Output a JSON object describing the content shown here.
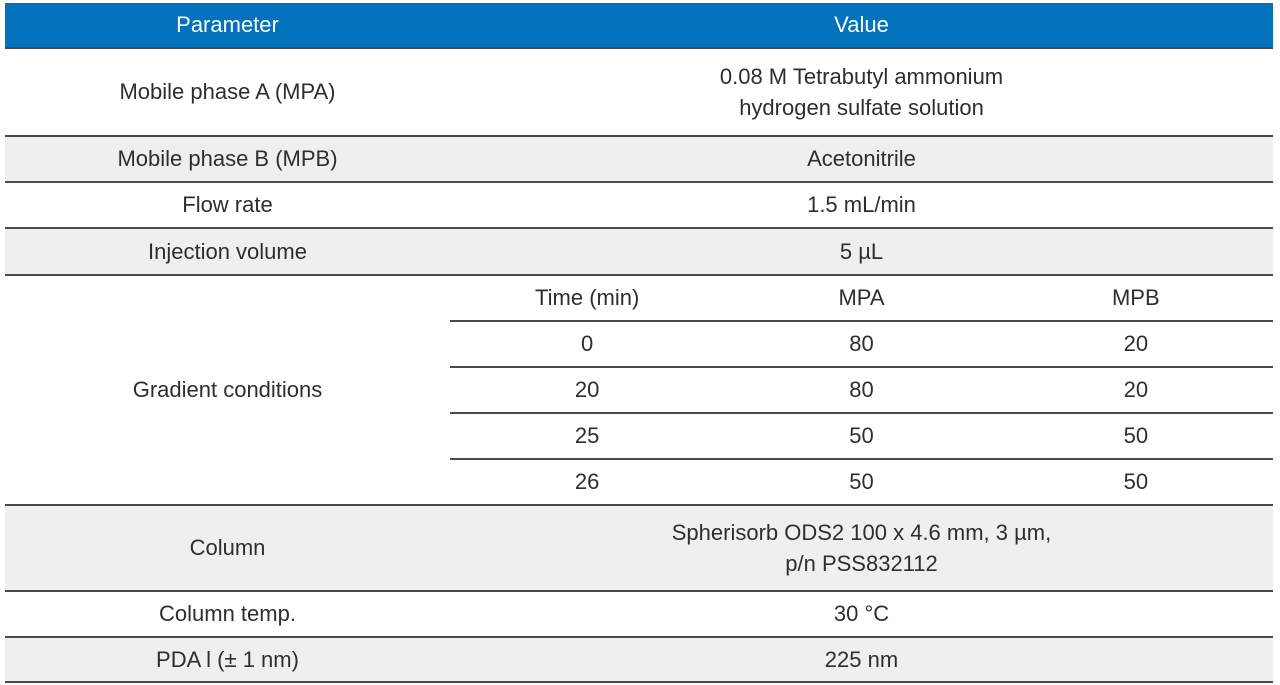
{
  "colors": {
    "header_bg": "#0272BC",
    "header_text": "#FFFFFF",
    "alt_row_bg": "#EFEFEF",
    "border": "#4A4A4A",
    "text": "#2E2E2E"
  },
  "table": {
    "headers": {
      "parameter": "Parameter",
      "value": "Value"
    },
    "rows": {
      "mpa": {
        "label": "Mobile phase A (MPA)",
        "value_line1": "0.08 M Tetrabutyl ammonium",
        "value_line2": "hydrogen sulfate solution"
      },
      "mpb": {
        "label": "Mobile phase B (MPB)",
        "value": "Acetonitrile"
      },
      "flow_rate": {
        "label": "Flow rate",
        "value": "1.5 mL/min"
      },
      "injection_volume": {
        "label": "Injection volume",
        "value": "5 µL"
      },
      "gradient": {
        "label": "Gradient conditions"
      },
      "column": {
        "label": "Column",
        "value_line1": "Spherisorb ODS2 100 x 4.6 mm, 3 µm,",
        "value_line2": "p/n PSS832112"
      },
      "column_temp": {
        "label": "Column temp.",
        "value": "30 °C"
      },
      "pda": {
        "label": "PDA l (± 1 nm)",
        "value": "225 nm"
      }
    },
    "gradient_table": {
      "col_headers": [
        "Time (min)",
        "MPA",
        "MPB"
      ],
      "rows": [
        [
          "0",
          "80",
          "20"
        ],
        [
          "20",
          "80",
          "20"
        ],
        [
          "25",
          "50",
          "50"
        ],
        [
          "26",
          "50",
          "50"
        ]
      ]
    }
  }
}
